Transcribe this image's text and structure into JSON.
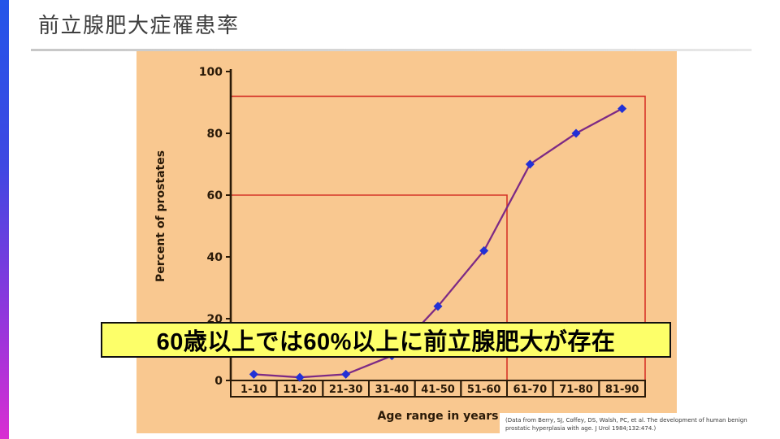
{
  "slide": {
    "title": "前立腺肥大症罹患率",
    "callout": "60歳以上では60%以上に前立腺肥大が存在",
    "citation_lines": [
      "(Data from Berry, SJ, Coffey, DS, Walsh, PC, et al. The development of human benign",
      "prostatic hyperplasia with age. J Urol 1984;132:474.)"
    ],
    "accent_gradient": {
      "top": "#2355e9",
      "bottom": "#d92ed2"
    }
  },
  "chart_data": {
    "type": "line",
    "title": "",
    "categories": [
      "1-10",
      "11-20",
      "21-30",
      "31-40",
      "41-50",
      "51-60",
      "61-70",
      "71-80",
      "81-90"
    ],
    "values": [
      2,
      1,
      2,
      8,
      24,
      42,
      70,
      80,
      88
    ],
    "xlabel": "Age range in years",
    "ylabel": "Percent of prostates",
    "yticks": [
      0,
      20,
      40,
      60,
      80,
      100
    ],
    "ylim": [
      0,
      100
    ],
    "grid": false,
    "legend": "none",
    "ref_lines": [
      {
        "percent": 92,
        "span_boxes": 9
      },
      {
        "percent": 60,
        "span_boxes": 6
      }
    ],
    "colors": {
      "background": "#f9c890",
      "axis": "#2a1a08",
      "line": "#7d2a85",
      "marker": "#2231d6",
      "ref": "#d63529"
    }
  }
}
